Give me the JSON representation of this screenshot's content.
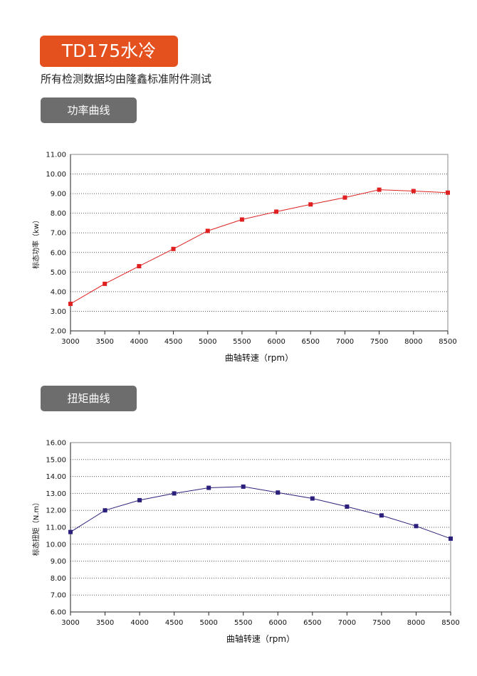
{
  "header": {
    "title": "TD175水冷",
    "subtitle": "所有检测数据均由隆鑫标准附件测试"
  },
  "sections": [
    {
      "label": "功率曲线"
    },
    {
      "label": "扭矩曲线"
    }
  ],
  "chart_data": [
    {
      "type": "line",
      "xlabel": "曲轴转速（rpm）",
      "ylabel": "标态功率（kw）",
      "x": [
        3000,
        3500,
        4000,
        4500,
        5000,
        5500,
        6000,
        6500,
        7000,
        7500,
        8000,
        8500
      ],
      "values": [
        3.38,
        4.4,
        5.3,
        6.18,
        7.1,
        7.68,
        8.08,
        8.45,
        8.8,
        9.2,
        9.13,
        9.05
      ],
      "ylim": [
        2,
        11
      ],
      "xlim": [
        3000,
        8500
      ],
      "ystep": 1,
      "grid": true,
      "color": "#e02020"
    },
    {
      "type": "line",
      "xlabel": "曲轴转速（rpm）",
      "ylabel": "标态扭矩（N.m）",
      "x": [
        3000,
        3500,
        4000,
        4500,
        5000,
        5500,
        6000,
        6500,
        7000,
        7500,
        8000,
        8500
      ],
      "values": [
        10.72,
        12.0,
        12.6,
        13.0,
        13.33,
        13.4,
        13.05,
        12.7,
        12.22,
        11.7,
        11.07,
        10.33
      ],
      "ylim": [
        6,
        16
      ],
      "xlim": [
        3000,
        8500
      ],
      "ystep": 1,
      "grid": true,
      "color": "#2a1f7a"
    }
  ]
}
